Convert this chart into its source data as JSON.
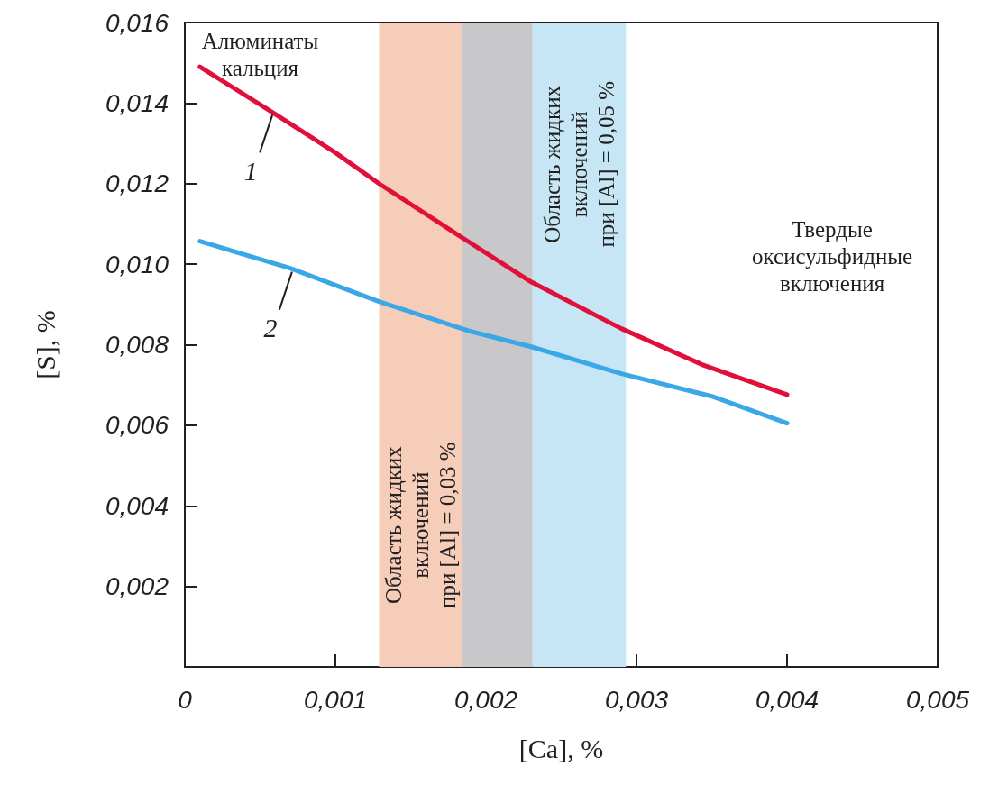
{
  "chart_data": {
    "type": "line",
    "xlabel": "[Ca], %",
    "ylabel": "[S], %",
    "xlim": [
      0,
      0.005
    ],
    "ylim": [
      0,
      0.016
    ],
    "xticks": [
      0,
      {
        "value": 0.001,
        "label": "0,001"
      },
      {
        "value": 0.002,
        "label": "0,002"
      },
      {
        "value": 0.003,
        "label": "0,003"
      },
      {
        "value": 0.004,
        "label": "0,004"
      },
      {
        "value": 0.005,
        "label": "0,005"
      }
    ],
    "yticks": [
      {
        "value": 0,
        "label": null
      },
      {
        "value": 0.002,
        "label": "0,002"
      },
      {
        "value": 0.004,
        "label": "0,004"
      },
      {
        "value": 0.006,
        "label": "0,006"
      },
      {
        "value": 0.008,
        "label": "0,008"
      },
      {
        "value": 0.01,
        "label": "0,010"
      },
      {
        "value": 0.012,
        "label": "0,012"
      },
      {
        "value": 0.014,
        "label": "0,014"
      },
      {
        "value": 0.016,
        "label": "0,016"
      }
    ],
    "grid": false,
    "legend": false,
    "marker": "none",
    "line_style": "solid",
    "series": [
      {
        "name": "1",
        "color": "#e0103a",
        "x": [
          0.0001,
          0.00057,
          0.001,
          0.00129,
          0.00185,
          0.0023,
          0.0029,
          0.00344,
          0.004
        ],
        "values": [
          0.0149,
          0.0138,
          0.01277,
          0.012,
          0.01064,
          0.00956,
          0.0084,
          0.0075,
          0.00676
        ]
      },
      {
        "name": "2",
        "color": "#3aa7e6",
        "x": [
          0.0001,
          0.0007,
          0.00129,
          0.0019,
          0.0023,
          0.0029,
          0.0035,
          0.004
        ],
        "values": [
          0.01057,
          0.0099,
          0.00907,
          0.00833,
          0.00795,
          0.00728,
          0.00672,
          0.00605
        ]
      }
    ],
    "bands": [
      {
        "axis": "x",
        "from": 0.00129,
        "to": 0.00184,
        "color": "#f5cdb8",
        "label": "Область жидких\nвключений\nпри [Al] = 0,03 %"
      },
      {
        "axis": "x",
        "from": 0.00184,
        "to": 0.00231,
        "color": "#c8c7c9",
        "label": null
      },
      {
        "axis": "x",
        "from": 0.00231,
        "to": 0.00293,
        "color": "#c6e6f6",
        "label": "Область жидких\nвключений\nпри [Al] = 0,05 %"
      }
    ],
    "annotations": [
      "Алюминаты\nкальция",
      "Твердые\nоксисульфидные\nвключения"
    ]
  }
}
